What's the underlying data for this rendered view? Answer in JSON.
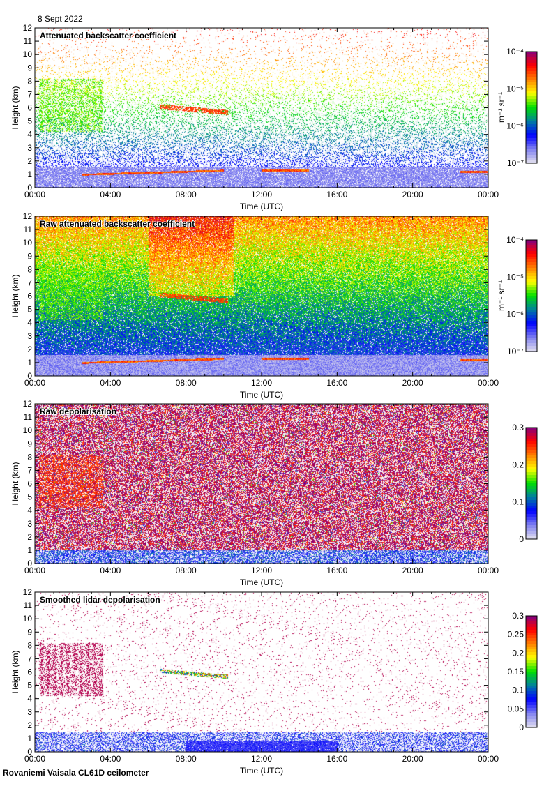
{
  "header": {
    "date": "8 Sept 2022"
  },
  "footer": {
    "site": "Rovaniemi Vaisala CL61D ceilometer"
  },
  "colors": {
    "background": "#ffffff",
    "colormap": [
      "#e2e0ee",
      "#8080f0",
      "#0000ff",
      "#007fa0",
      "#00e000",
      "#ffff00",
      "#ff8000",
      "#ff0000",
      "#800080"
    ]
  },
  "chart_data": [
    {
      "type": "heatmap",
      "title": "Attenuated backscatter coefficient",
      "xlabel": "Time (UTC)",
      "ylabel": "Height (km)",
      "xlim": [
        0,
        24
      ],
      "ylim": [
        0,
        12
      ],
      "xticks": [
        "00:00",
        "04:00",
        "08:00",
        "12:00",
        "16:00",
        "20:00",
        "00:00"
      ],
      "yticks": [
        "0",
        "1",
        "2",
        "3",
        "4",
        "5",
        "6",
        "7",
        "8",
        "9",
        "10",
        "11",
        "12"
      ],
      "colorbar": {
        "label": "m⁻¹ sr⁻¹",
        "scale": "log",
        "range": [
          1e-07,
          0.0001
        ],
        "ticks": [
          "10⁻⁴",
          "10⁻⁵",
          "10⁻⁶",
          "10⁻⁷"
        ]
      },
      "mode": "sparse",
      "features": [
        {
          "name": "mid-level cloud",
          "time": [
            0.2,
            3.6
          ],
          "height": [
            4.2,
            8.2
          ],
          "level": 0.55
        },
        {
          "name": "thin cloud",
          "time": [
            6.6,
            10.2
          ],
          "height": [
            5.4,
            6.4
          ],
          "level": 0.82
        },
        {
          "name": "boundary-layer top",
          "time": [
            2.5,
            10
          ],
          "height": [
            1.0,
            1.3
          ],
          "level": 0.8
        },
        {
          "name": "boundary-layer top",
          "time": [
            12,
            14.5
          ],
          "height": [
            1.3,
            1.3
          ],
          "level": 0.8
        },
        {
          "name": "boundary-layer top",
          "time": [
            22.5,
            24
          ],
          "height": [
            1.2,
            1.2
          ],
          "level": 0.8
        }
      ]
    },
    {
      "type": "heatmap",
      "title": "Raw attenuated backscatter coefficient",
      "xlabel": "Time (UTC)",
      "ylabel": "Height (km)",
      "xlim": [
        0,
        24
      ],
      "ylim": [
        0,
        12
      ],
      "xticks": [
        "00:00",
        "04:00",
        "08:00",
        "12:00",
        "16:00",
        "20:00",
        "00:00"
      ],
      "yticks": [
        "0",
        "1",
        "2",
        "3",
        "4",
        "5",
        "6",
        "7",
        "8",
        "9",
        "10",
        "11",
        "12"
      ],
      "colorbar": {
        "label": "m⁻¹ sr⁻¹",
        "scale": "log",
        "range": [
          1e-07,
          0.0001
        ],
        "ticks": [
          "10⁻⁴",
          "10⁻⁵",
          "10⁻⁶",
          "10⁻⁷"
        ]
      },
      "mode": "dense",
      "features": [
        {
          "name": "mid-level cloud",
          "time": [
            0.2,
            3.6
          ],
          "height": [
            4.2,
            8.2
          ],
          "level": 0.55
        },
        {
          "name": "thin cloud",
          "time": [
            6.6,
            10.2
          ],
          "height": [
            5.4,
            6.4
          ],
          "level": 0.82
        },
        {
          "name": "boundary-layer top",
          "time": [
            2.5,
            10
          ],
          "height": [
            1.0,
            1.3
          ],
          "level": 0.8
        },
        {
          "name": "boundary-layer top",
          "time": [
            12,
            14.5
          ],
          "height": [
            1.3,
            1.3
          ],
          "level": 0.8
        },
        {
          "name": "boundary-layer top",
          "time": [
            22.5,
            24
          ],
          "height": [
            1.2,
            1.2
          ],
          "level": 0.8
        }
      ]
    },
    {
      "type": "heatmap",
      "title": "Raw depolarisation",
      "xlabel": "Time (UTC)",
      "ylabel": "Height (km)",
      "xlim": [
        0,
        24
      ],
      "ylim": [
        0,
        12
      ],
      "xticks": [
        "00:00",
        "04:00",
        "08:00",
        "12:00",
        "16:00",
        "20:00",
        "00:00"
      ],
      "yticks": [
        "0",
        "1",
        "2",
        "3",
        "4",
        "5",
        "6",
        "7",
        "8",
        "9",
        "10",
        "11",
        "12"
      ],
      "colorbar": {
        "label": "",
        "scale": "linear",
        "range": [
          0,
          0.3
        ],
        "ticks": [
          "0.3",
          "0.2",
          "0.1",
          "0"
        ]
      },
      "mode": "noise",
      "features": [
        {
          "name": "mid-level cloud",
          "time": [
            0.2,
            3.6
          ],
          "height": [
            4.2,
            8.2
          ],
          "level": 0.9
        },
        {
          "name": "boundary layer",
          "time": [
            0,
            24
          ],
          "height": [
            0,
            1.0
          ],
          "level": 0.25
        }
      ]
    },
    {
      "type": "heatmap",
      "title": "Smoothed lidar depolarisation",
      "xlabel": "Time (UTC)",
      "ylabel": "Height (km)",
      "xlim": [
        0,
        24
      ],
      "ylim": [
        0,
        12
      ],
      "xticks": [
        "00:00",
        "04:00",
        "08:00",
        "12:00",
        "16:00",
        "20:00",
        "00:00"
      ],
      "yticks": [
        "0",
        "1",
        "2",
        "3",
        "4",
        "5",
        "6",
        "7",
        "8",
        "9",
        "10",
        "11",
        "12"
      ],
      "colorbar": {
        "label": "",
        "scale": "linear",
        "range": [
          0,
          0.3
        ],
        "ticks": [
          "0.3",
          "0.25",
          "0.2",
          "0.15",
          "0.1",
          "0.05",
          "0"
        ]
      },
      "mode": "smooth",
      "features": [
        {
          "name": "mid-level cloud",
          "time": [
            0.2,
            3.6
          ],
          "height": [
            4.2,
            8.2
          ],
          "level": 0.95
        },
        {
          "name": "thin cloud",
          "time": [
            6.6,
            10.2
          ],
          "height": [
            5.4,
            6.4
          ],
          "level": 0.3
        },
        {
          "name": "boundary layer",
          "time": [
            0,
            24
          ],
          "height": [
            0,
            1.2
          ],
          "level": 0.25
        }
      ]
    }
  ]
}
